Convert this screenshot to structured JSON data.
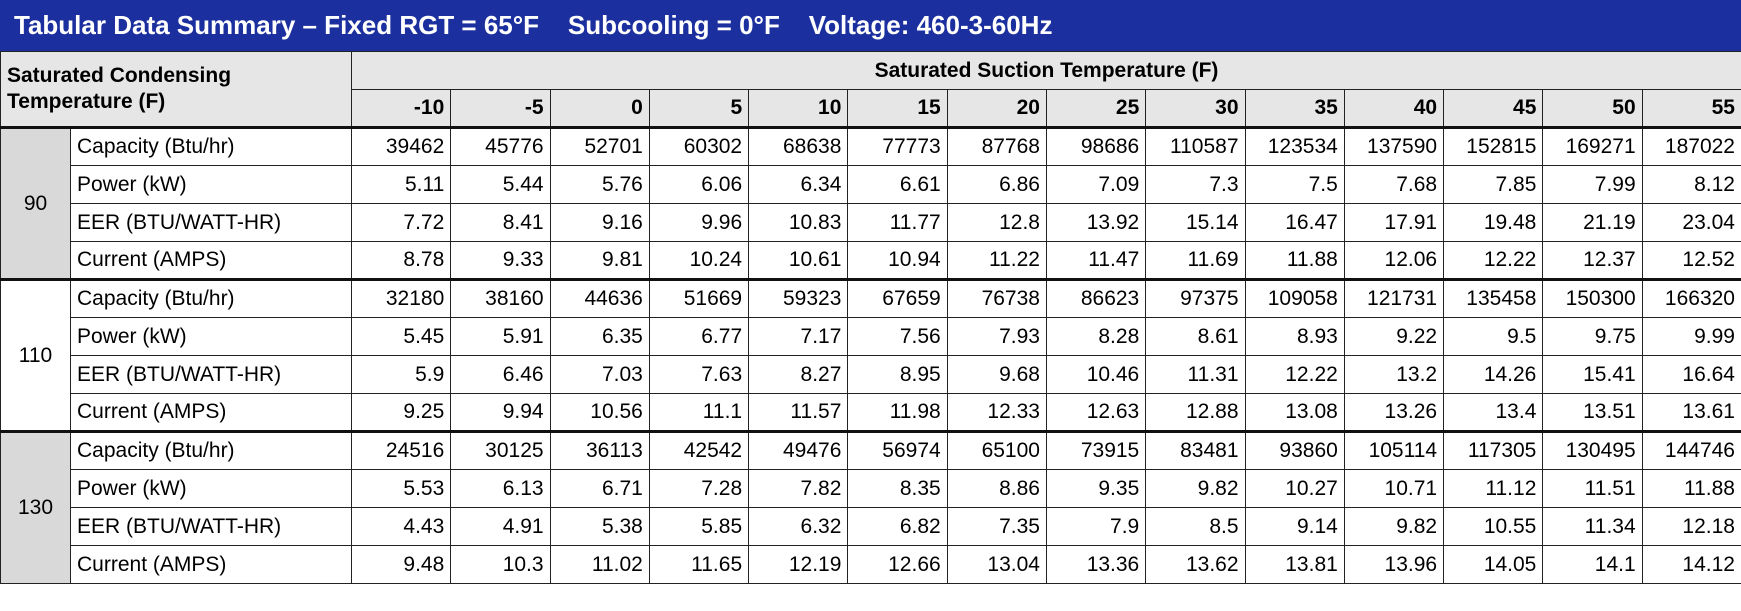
{
  "title": "Tabular Data Summary – Fixed RGT = 65°F    Subcooling = 0°F    Voltage: 460-3-60Hz",
  "header": {
    "row_label": "Saturated Condensing Temperature (F)",
    "column_group": "Saturated Suction Temperature (F)",
    "columns": [
      -10,
      -5,
      0,
      5,
      10,
      15,
      20,
      25,
      30,
      35,
      40,
      45,
      50,
      55
    ]
  },
  "groups": [
    {
      "temperature": 90,
      "rows": [
        {
          "label": "Capacity (Btu/hr)",
          "values": [
            39462,
            45776,
            52701,
            60302,
            68638,
            77773,
            87768,
            98686,
            110587,
            123534,
            137590,
            152815,
            169271,
            187022
          ]
        },
        {
          "label": "Power (kW)",
          "values": [
            5.11,
            5.44,
            5.76,
            6.06,
            6.34,
            6.61,
            6.86,
            7.09,
            7.3,
            7.5,
            7.68,
            7.85,
            7.99,
            8.12
          ]
        },
        {
          "label": "EER (BTU/WATT-HR)",
          "values": [
            7.72,
            8.41,
            9.16,
            9.96,
            10.83,
            11.77,
            12.8,
            13.92,
            15.14,
            16.47,
            17.91,
            19.48,
            21.19,
            23.04
          ]
        },
        {
          "label": "Current (AMPS)",
          "values": [
            8.78,
            9.33,
            9.81,
            10.24,
            10.61,
            10.94,
            11.22,
            11.47,
            11.69,
            11.88,
            12.06,
            12.22,
            12.37,
            12.52
          ]
        }
      ]
    },
    {
      "temperature": 110,
      "rows": [
        {
          "label": "Capacity (Btu/hr)",
          "values": [
            32180,
            38160,
            44636,
            51669,
            59323,
            67659,
            76738,
            86623,
            97375,
            109058,
            121731,
            135458,
            150300,
            166320
          ]
        },
        {
          "label": "Power (kW)",
          "values": [
            5.45,
            5.91,
            6.35,
            6.77,
            7.17,
            7.56,
            7.93,
            8.28,
            8.61,
            8.93,
            9.22,
            9.5,
            9.75,
            9.99
          ]
        },
        {
          "label": "EER (BTU/WATT-HR)",
          "values": [
            5.9,
            6.46,
            7.03,
            7.63,
            8.27,
            8.95,
            9.68,
            10.46,
            11.31,
            12.22,
            13.2,
            14.26,
            15.41,
            16.64
          ]
        },
        {
          "label": "Current (AMPS)",
          "values": [
            9.25,
            9.94,
            10.56,
            11.1,
            11.57,
            11.98,
            12.33,
            12.63,
            12.88,
            13.08,
            13.26,
            13.4,
            13.51,
            13.61
          ]
        }
      ]
    },
    {
      "temperature": 130,
      "rows": [
        {
          "label": "Capacity (Btu/hr)",
          "values": [
            24516,
            30125,
            36113,
            42542,
            49476,
            56974,
            65100,
            73915,
            83481,
            93860,
            105114,
            117305,
            130495,
            144746
          ]
        },
        {
          "label": "Power (kW)",
          "values": [
            5.53,
            6.13,
            6.71,
            7.28,
            7.82,
            8.35,
            8.86,
            9.35,
            9.82,
            10.27,
            10.71,
            11.12,
            11.51,
            11.88
          ]
        },
        {
          "label": "EER (BTU/WATT-HR)",
          "values": [
            4.43,
            4.91,
            5.38,
            5.85,
            6.32,
            6.82,
            7.35,
            7.9,
            8.5,
            9.14,
            9.82,
            10.55,
            11.34,
            12.18
          ]
        },
        {
          "label": "Current (AMPS)",
          "values": [
            9.48,
            10.3,
            11.02,
            11.65,
            12.19,
            12.66,
            13.04,
            13.36,
            13.62,
            13.81,
            13.96,
            14.05,
            14.1,
            14.12
          ]
        }
      ]
    }
  ]
}
